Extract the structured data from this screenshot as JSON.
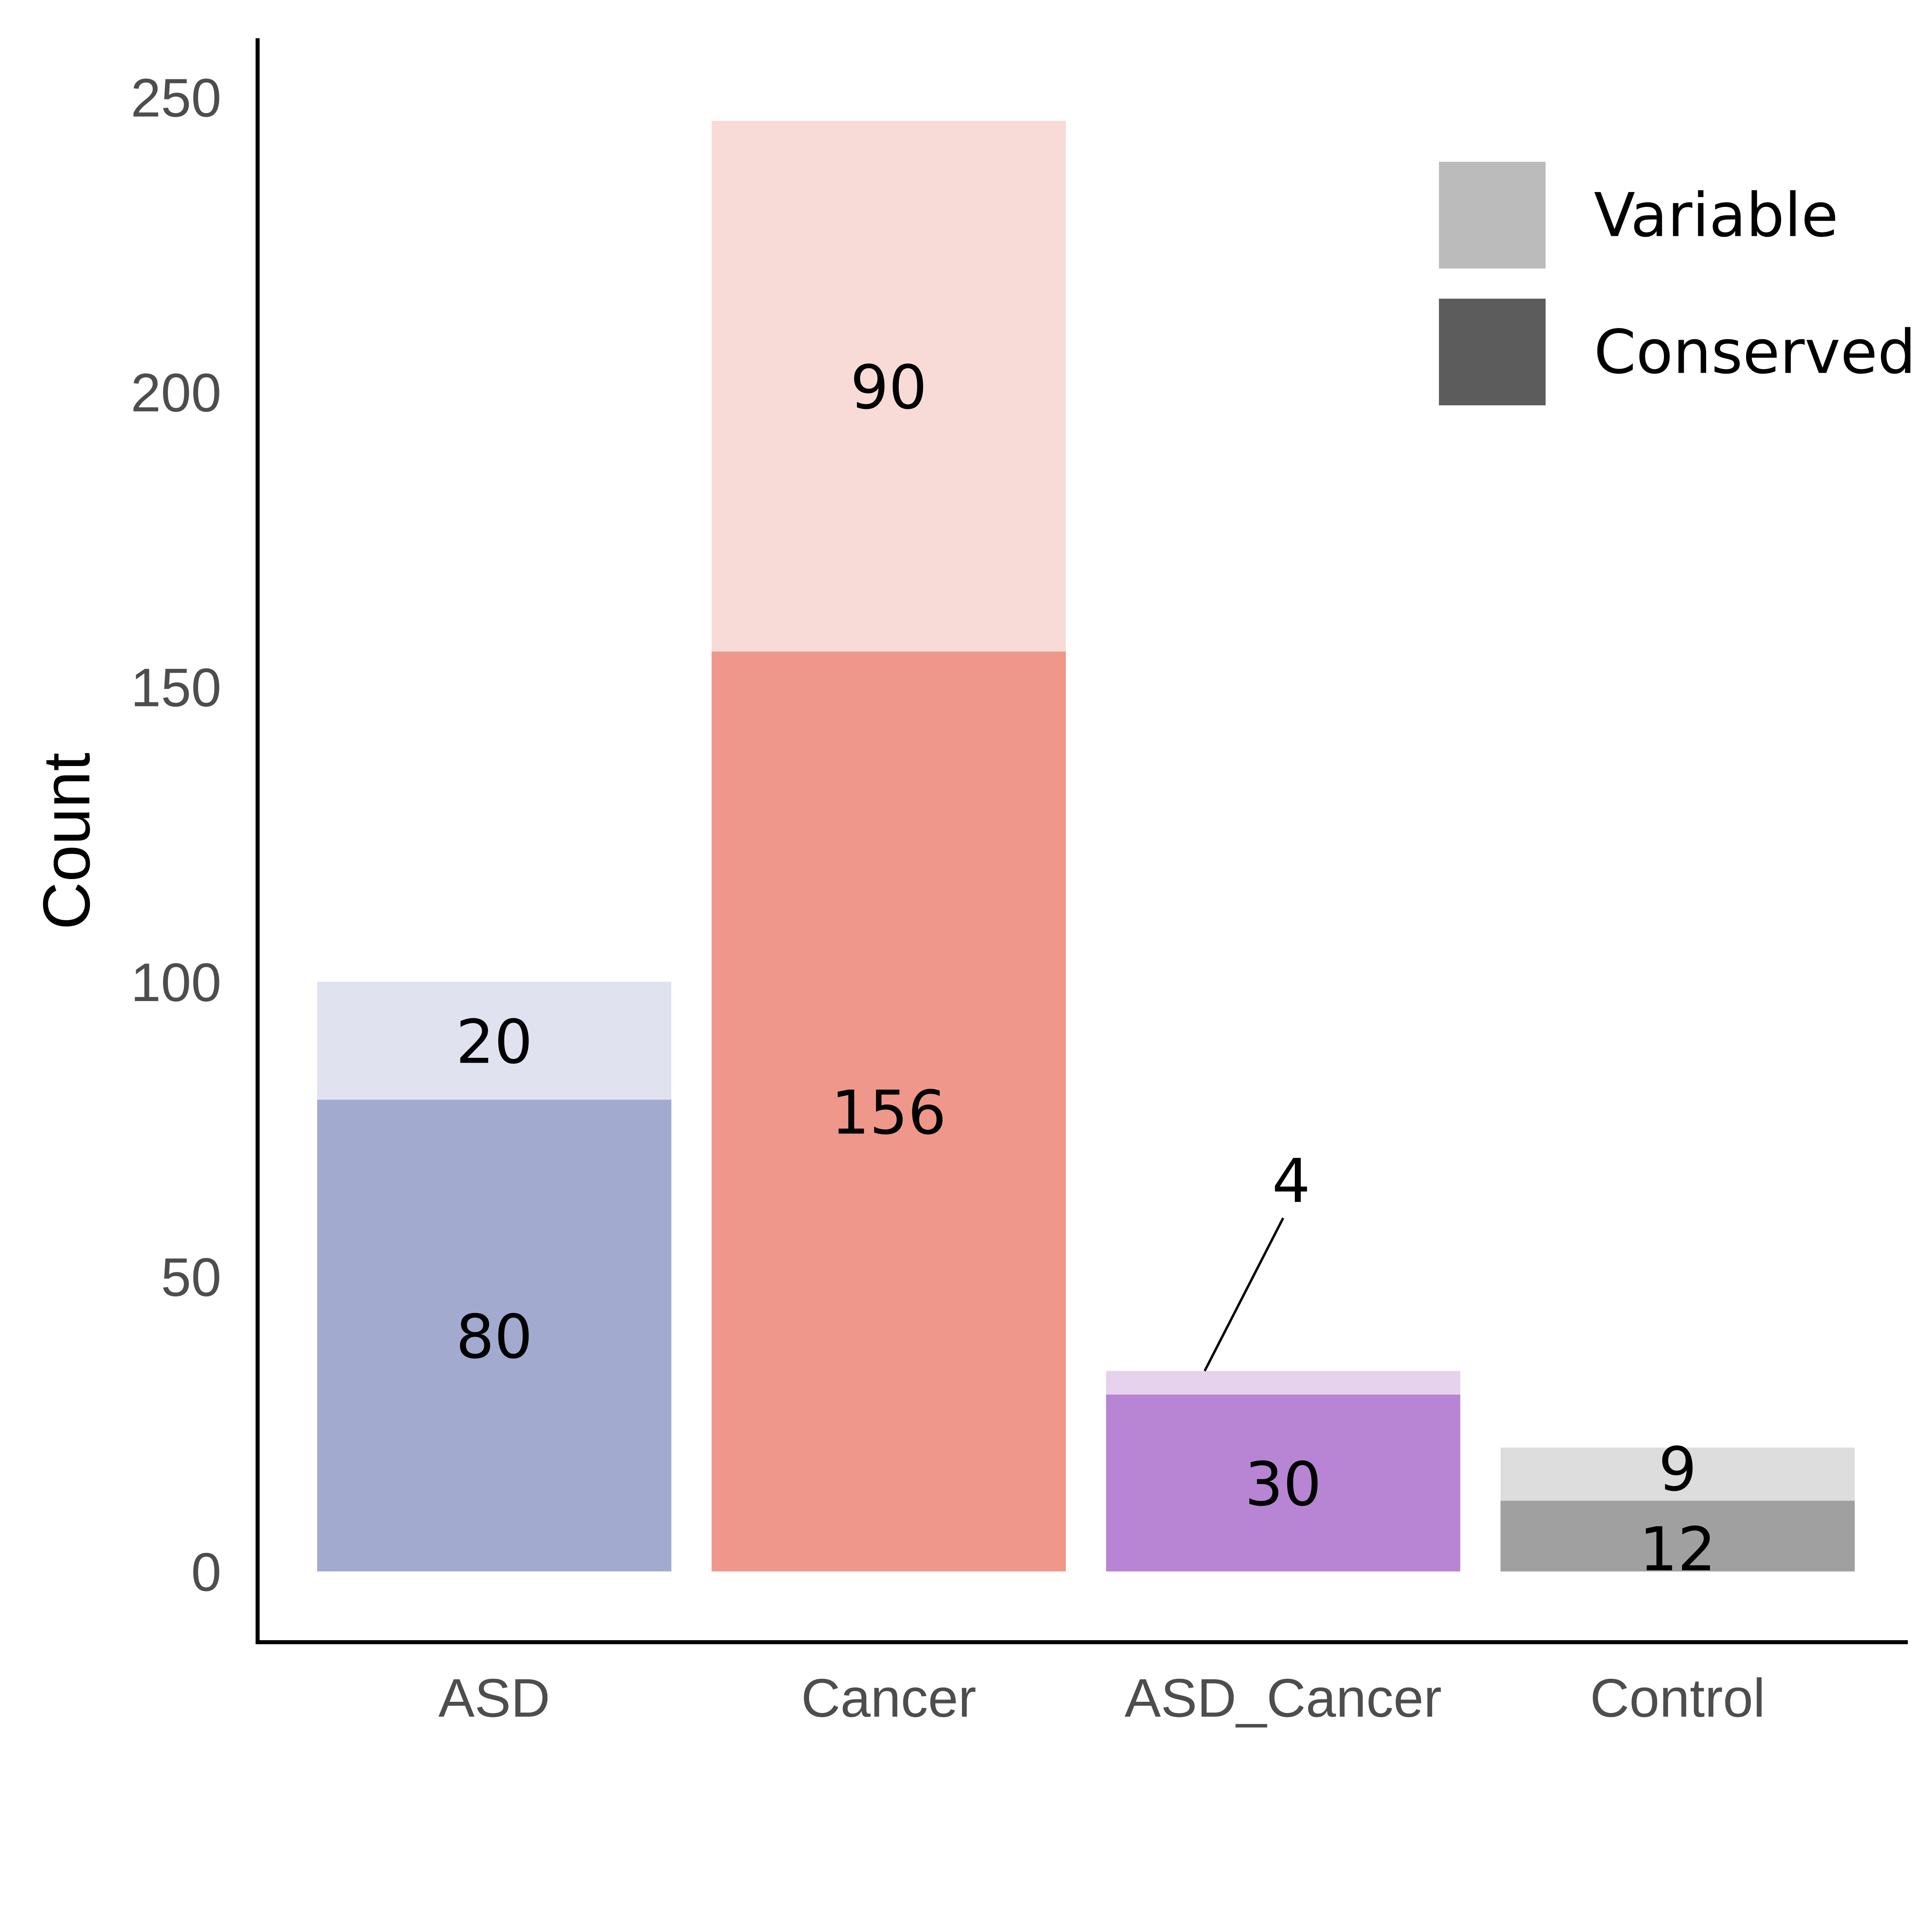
{
  "chart_data": {
    "type": "bar",
    "stacked": true,
    "categories": [
      "ASD",
      "Cancer",
      "ASD_Cancer",
      "Control"
    ],
    "series": [
      {
        "name": "Conserved",
        "values": [
          80,
          156,
          30,
          12
        ],
        "colors": [
          "#a2aacf",
          "#ef978b",
          "#b785d4",
          "#a0a0a0"
        ]
      },
      {
        "name": "Variable",
        "values": [
          20,
          90,
          4,
          9
        ],
        "colors": [
          "#e0e2f0",
          "#f8dbd7",
          "#e7d2ee",
          "#dddddd"
        ]
      }
    ],
    "ylabel": "Count",
    "xlabel": "",
    "ylim": [
      -12,
      260
    ],
    "yticks": [
      0,
      50,
      100,
      150,
      200,
      250
    ],
    "legend": {
      "position": "top-right",
      "items": [
        {
          "label": "Variable",
          "color": "#bbbbbb"
        },
        {
          "label": "Conserved",
          "color": "#5c5c5c"
        }
      ]
    },
    "grid": false
  }
}
